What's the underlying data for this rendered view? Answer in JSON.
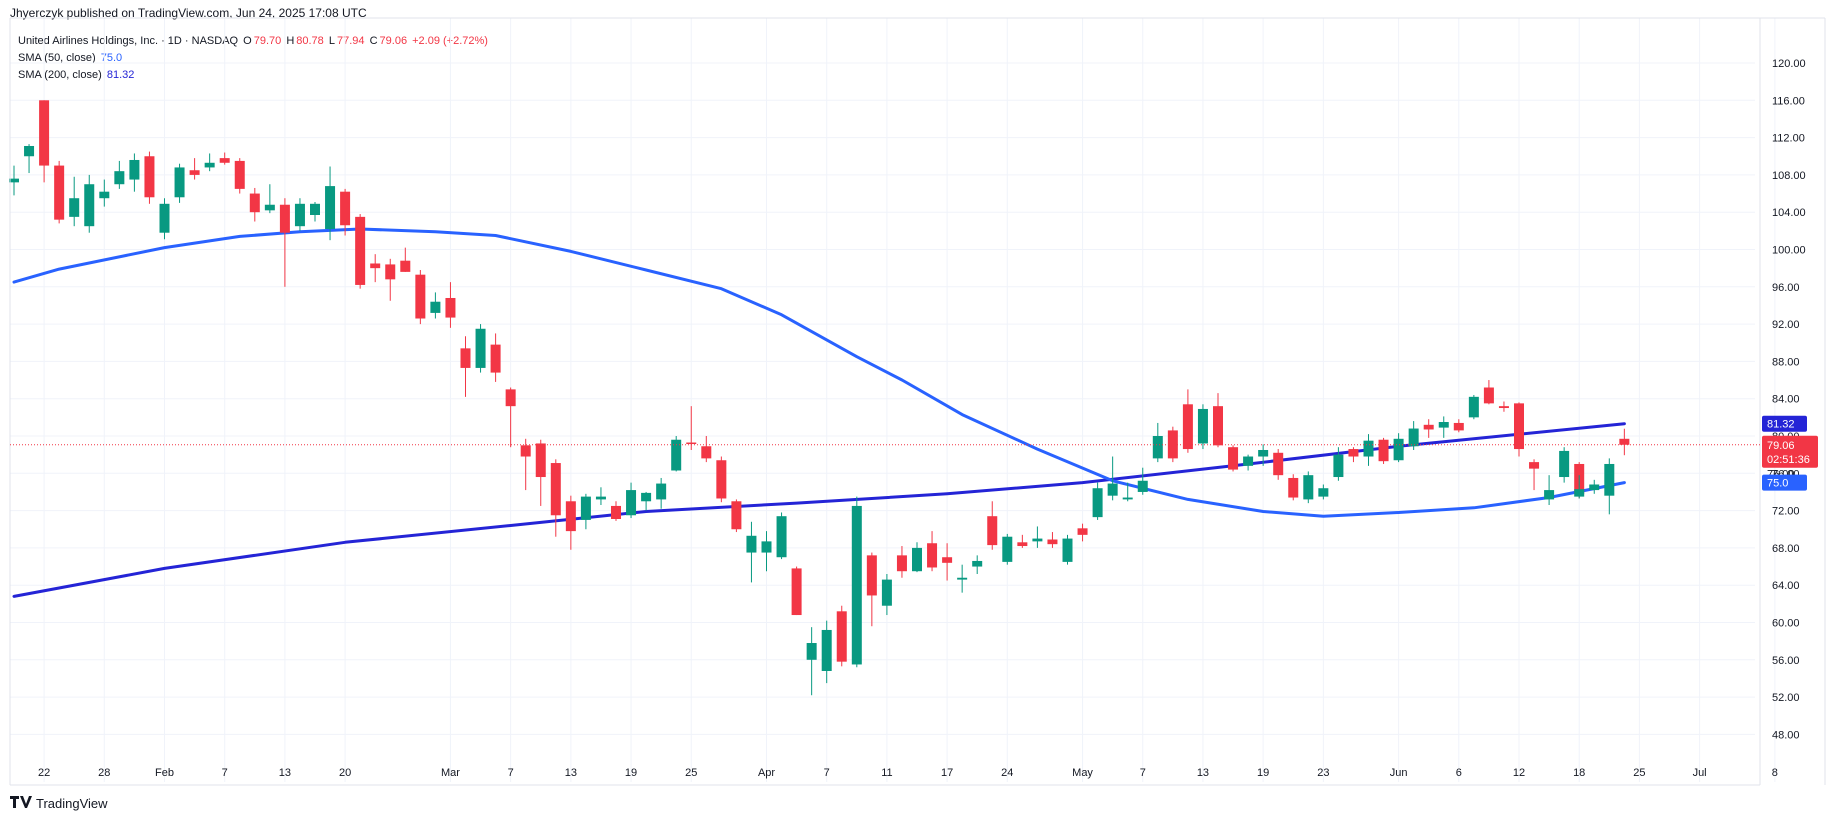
{
  "publisher": "Jhyerczyk published on TradingView.com, Jun 24, 2025 17:08 UTC",
  "header": {
    "symbol": "United Airlines Holdings, Inc. · 1D · NASDAQ",
    "o_label": "O",
    "o_value": "79.70",
    "h_label": "H",
    "h_value": "80.78",
    "l_label": "L",
    "l_value": "77.94",
    "c_label": "C",
    "c_value": "79.06",
    "change": "+2.09 (+2.72%)",
    "sma50_label": "SMA (50, close)",
    "sma50_value": "75.0",
    "sma200_label": "SMA (200, close)",
    "sma200_value": "81.32"
  },
  "footer": {
    "brand": "TradingView",
    "logo_icon": "tradingview-logo-icon"
  },
  "colors": {
    "up": "#089981",
    "down": "#f23645",
    "sma50": "#2962ff",
    "sma200": "#2424d6",
    "grid": "#f0f3fa",
    "last_price_line": "#f23645"
  },
  "price_tags": {
    "sma200": "81.32",
    "last": "79.06",
    "countdown": "02:51:36",
    "sma50": "75.0",
    "hidden": "76.00"
  },
  "chart_data": {
    "type": "candlestick",
    "title": "United Airlines Holdings, Inc. · 1D · NASDAQ",
    "ylim": [
      46,
      124
    ],
    "y_ticks": [
      "120.00",
      "116.00",
      "112.00",
      "108.00",
      "104.00",
      "100.00",
      "96.00",
      "92.00",
      "88.00",
      "84.00",
      "80.00",
      "76.00",
      "72.00",
      "68.00",
      "64.00",
      "60.00",
      "56.00",
      "52.00",
      "48.00"
    ],
    "x_ticks": [
      {
        "label": "22",
        "date": "2025-01-22"
      },
      {
        "label": "28",
        "date": "2025-01-28"
      },
      {
        "label": "Feb",
        "date": "2025-02-03"
      },
      {
        "label": "7",
        "date": "2025-02-07"
      },
      {
        "label": "13",
        "date": "2025-02-13"
      },
      {
        "label": "20",
        "date": "2025-02-20"
      },
      {
        "label": "Mar",
        "date": "2025-03-03"
      },
      {
        "label": "7",
        "date": "2025-03-07"
      },
      {
        "label": "13",
        "date": "2025-03-13"
      },
      {
        "label": "19",
        "date": "2025-03-19"
      },
      {
        "label": "25",
        "date": "2025-03-25"
      },
      {
        "label": "Apr",
        "date": "2025-04-01"
      },
      {
        "label": "7",
        "date": "2025-04-07"
      },
      {
        "label": "11",
        "date": "2025-04-11"
      },
      {
        "label": "17",
        "date": "2025-04-17"
      },
      {
        "label": "24",
        "date": "2025-04-24"
      },
      {
        "label": "May",
        "date": "2025-05-01"
      },
      {
        "label": "7",
        "date": "2025-05-07"
      },
      {
        "label": "13",
        "date": "2025-05-13"
      },
      {
        "label": "19",
        "date": "2025-05-19"
      },
      {
        "label": "23",
        "date": "2025-05-23"
      },
      {
        "label": "Jun",
        "date": "2025-06-02"
      },
      {
        "label": "6",
        "date": "2025-06-06"
      },
      {
        "label": "12",
        "date": "2025-06-12"
      },
      {
        "label": "18",
        "date": "2025-06-18"
      },
      {
        "label": "25",
        "date": "2025-06-25"
      },
      {
        "label": "Jul",
        "date": "2025-07-01"
      },
      {
        "label": "8",
        "date": "2025-07-08"
      }
    ],
    "candles": [
      {
        "date": "2025-01-17",
        "o": 107.2,
        "h": 109.0,
        "l": 105.8,
        "c": 107.6
      },
      {
        "date": "2025-01-21",
        "o": 110.0,
        "h": 111.3,
        "l": 108.2,
        "c": 111.1
      },
      {
        "date": "2025-01-22",
        "o": 116.0,
        "h": 116.0,
        "l": 107.2,
        "c": 109.0
      },
      {
        "date": "2025-01-23",
        "o": 109.0,
        "h": 109.5,
        "l": 102.8,
        "c": 103.2
      },
      {
        "date": "2025-01-24",
        "o": 103.5,
        "h": 107.8,
        "l": 102.5,
        "c": 105.5
      },
      {
        "date": "2025-01-27",
        "o": 102.5,
        "h": 108.0,
        "l": 101.8,
        "c": 107.0
      },
      {
        "date": "2025-01-28",
        "o": 105.5,
        "h": 107.5,
        "l": 104.6,
        "c": 106.2
      },
      {
        "date": "2025-01-29",
        "o": 107.0,
        "h": 109.5,
        "l": 106.5,
        "c": 108.4
      },
      {
        "date": "2025-01-30",
        "o": 107.5,
        "h": 110.3,
        "l": 106.2,
        "c": 109.6
      },
      {
        "date": "2025-01-31",
        "o": 110.0,
        "h": 110.5,
        "l": 104.9,
        "c": 105.6
      },
      {
        "date": "2025-02-03",
        "o": 101.8,
        "h": 105.5,
        "l": 101.1,
        "c": 104.9
      },
      {
        "date": "2025-02-04",
        "o": 105.6,
        "h": 109.2,
        "l": 105.0,
        "c": 108.8
      },
      {
        "date": "2025-02-05",
        "o": 108.5,
        "h": 109.8,
        "l": 107.5,
        "c": 108.0
      },
      {
        "date": "2025-02-06",
        "o": 108.8,
        "h": 110.3,
        "l": 108.4,
        "c": 109.3
      },
      {
        "date": "2025-02-07",
        "o": 109.8,
        "h": 110.4,
        "l": 109.1,
        "c": 109.3
      },
      {
        "date": "2025-02-10",
        "o": 109.5,
        "h": 109.8,
        "l": 106.0,
        "c": 106.5
      },
      {
        "date": "2025-02-11",
        "o": 106.0,
        "h": 106.6,
        "l": 103.0,
        "c": 104.0
      },
      {
        "date": "2025-02-12",
        "o": 104.2,
        "h": 107.0,
        "l": 103.9,
        "c": 104.8
      },
      {
        "date": "2025-02-13",
        "o": 104.8,
        "h": 105.5,
        "l": 96.0,
        "c": 101.8
      },
      {
        "date": "2025-02-14",
        "o": 102.5,
        "h": 105.5,
        "l": 102.0,
        "c": 104.9
      },
      {
        "date": "2025-02-18",
        "o": 103.7,
        "h": 105.1,
        "l": 103.0,
        "c": 104.9
      },
      {
        "date": "2025-02-19",
        "o": 102.2,
        "h": 108.9,
        "l": 101.0,
        "c": 106.8
      },
      {
        "date": "2025-02-20",
        "o": 106.2,
        "h": 106.5,
        "l": 101.5,
        "c": 102.6
      },
      {
        "date": "2025-02-21",
        "o": 103.5,
        "h": 103.8,
        "l": 95.8,
        "c": 96.2
      },
      {
        "date": "2025-02-24",
        "o": 98.5,
        "h": 99.5,
        "l": 96.5,
        "c": 98.0
      },
      {
        "date": "2025-02-25",
        "o": 98.4,
        "h": 99.0,
        "l": 94.5,
        "c": 96.8
      },
      {
        "date": "2025-02-26",
        "o": 98.8,
        "h": 100.2,
        "l": 97.6,
        "c": 97.6
      },
      {
        "date": "2025-02-27",
        "o": 97.3,
        "h": 97.8,
        "l": 92.0,
        "c": 92.6
      },
      {
        "date": "2025-02-28",
        "o": 93.2,
        "h": 95.4,
        "l": 92.6,
        "c": 94.4
      },
      {
        "date": "2025-03-03",
        "o": 94.8,
        "h": 96.5,
        "l": 91.6,
        "c": 92.7
      },
      {
        "date": "2025-03-04",
        "o": 89.4,
        "h": 90.7,
        "l": 84.2,
        "c": 87.3
      },
      {
        "date": "2025-03-05",
        "o": 87.3,
        "h": 92.0,
        "l": 86.8,
        "c": 91.5
      },
      {
        "date": "2025-03-06",
        "o": 89.8,
        "h": 91.0,
        "l": 85.8,
        "c": 86.8
      },
      {
        "date": "2025-03-07",
        "o": 85.0,
        "h": 85.2,
        "l": 78.8,
        "c": 83.2
      },
      {
        "date": "2025-03-10",
        "o": 79.0,
        "h": 79.7,
        "l": 74.2,
        "c": 77.8
      },
      {
        "date": "2025-03-11",
        "o": 79.2,
        "h": 79.6,
        "l": 72.5,
        "c": 75.6
      },
      {
        "date": "2025-03-12",
        "o": 77.1,
        "h": 77.5,
        "l": 69.2,
        "c": 71.5
      },
      {
        "date": "2025-03-13",
        "o": 73.0,
        "h": 73.6,
        "l": 67.8,
        "c": 69.8
      },
      {
        "date": "2025-03-14",
        "o": 71.0,
        "h": 73.8,
        "l": 70.0,
        "c": 73.5
      },
      {
        "date": "2025-03-17",
        "o": 73.2,
        "h": 74.5,
        "l": 72.6,
        "c": 73.5
      },
      {
        "date": "2025-03-18",
        "o": 72.5,
        "h": 73.0,
        "l": 70.9,
        "c": 71.1
      },
      {
        "date": "2025-03-19",
        "o": 71.5,
        "h": 75.0,
        "l": 71.2,
        "c": 74.2
      },
      {
        "date": "2025-03-20",
        "o": 73.0,
        "h": 74.0,
        "l": 72.0,
        "c": 73.9
      },
      {
        "date": "2025-03-21",
        "o": 73.2,
        "h": 75.5,
        "l": 72.2,
        "c": 74.9
      },
      {
        "date": "2025-03-24",
        "o": 76.3,
        "h": 80.0,
        "l": 76.2,
        "c": 79.6
      },
      {
        "date": "2025-03-25",
        "o": 79.3,
        "h": 83.2,
        "l": 78.5,
        "c": 79.2
      },
      {
        "date": "2025-03-26",
        "o": 78.9,
        "h": 80.0,
        "l": 77.2,
        "c": 77.6
      },
      {
        "date": "2025-03-27",
        "o": 77.4,
        "h": 77.8,
        "l": 72.9,
        "c": 73.3
      },
      {
        "date": "2025-03-28",
        "o": 73.0,
        "h": 73.2,
        "l": 69.7,
        "c": 70.0
      },
      {
        "date": "2025-03-31",
        "o": 67.5,
        "h": 70.8,
        "l": 64.3,
        "c": 69.3
      },
      {
        "date": "2025-04-01",
        "o": 67.5,
        "h": 69.8,
        "l": 65.5,
        "c": 68.7
      },
      {
        "date": "2025-04-02",
        "o": 67.0,
        "h": 71.8,
        "l": 66.8,
        "c": 71.4
      },
      {
        "date": "2025-04-03",
        "o": 65.8,
        "h": 66.0,
        "l": 60.8,
        "c": 60.8
      },
      {
        "date": "2025-04-04",
        "o": 56.0,
        "h": 59.5,
        "l": 52.2,
        "c": 57.8
      },
      {
        "date": "2025-04-07",
        "o": 54.8,
        "h": 60.2,
        "l": 53.5,
        "c": 59.2
      },
      {
        "date": "2025-04-08",
        "o": 61.2,
        "h": 61.8,
        "l": 55.3,
        "c": 55.8
      },
      {
        "date": "2025-04-09",
        "o": 55.5,
        "h": 73.5,
        "l": 55.2,
        "c": 72.5
      },
      {
        "date": "2025-04-10",
        "o": 67.2,
        "h": 67.5,
        "l": 59.6,
        "c": 62.9
      },
      {
        "date": "2025-04-11",
        "o": 61.8,
        "h": 65.2,
        "l": 60.8,
        "c": 64.6
      },
      {
        "date": "2025-04-14",
        "o": 67.2,
        "h": 68.2,
        "l": 64.8,
        "c": 65.5
      },
      {
        "date": "2025-04-15",
        "o": 65.5,
        "h": 68.6,
        "l": 65.4,
        "c": 68.0
      },
      {
        "date": "2025-04-16",
        "o": 68.5,
        "h": 69.8,
        "l": 65.5,
        "c": 65.9
      },
      {
        "date": "2025-04-17",
        "o": 67.0,
        "h": 68.5,
        "l": 64.5,
        "c": 66.4
      },
      {
        "date": "2025-04-21",
        "o": 64.6,
        "h": 66.2,
        "l": 63.2,
        "c": 64.8
      },
      {
        "date": "2025-04-22",
        "o": 66.0,
        "h": 67.2,
        "l": 65.2,
        "c": 66.6
      },
      {
        "date": "2025-04-23",
        "o": 71.4,
        "h": 73.0,
        "l": 67.8,
        "c": 68.3
      },
      {
        "date": "2025-04-24",
        "o": 66.5,
        "h": 69.5,
        "l": 66.2,
        "c": 69.2
      },
      {
        "date": "2025-04-25",
        "o": 68.6,
        "h": 69.4,
        "l": 68.0,
        "c": 68.2
      },
      {
        "date": "2025-04-28",
        "o": 68.7,
        "h": 70.3,
        "l": 68.0,
        "c": 69.0
      },
      {
        "date": "2025-04-29",
        "o": 68.9,
        "h": 69.7,
        "l": 68.0,
        "c": 68.4
      },
      {
        "date": "2025-04-30",
        "o": 66.5,
        "h": 69.4,
        "l": 66.2,
        "c": 69.0
      },
      {
        "date": "2025-05-01",
        "o": 70.1,
        "h": 70.6,
        "l": 68.7,
        "c": 69.4
      },
      {
        "date": "2025-05-02",
        "o": 71.3,
        "h": 75.0,
        "l": 71.0,
        "c": 74.4
      },
      {
        "date": "2025-05-05",
        "o": 73.6,
        "h": 77.8,
        "l": 73.1,
        "c": 74.9
      },
      {
        "date": "2025-05-06",
        "o": 73.2,
        "h": 75.0,
        "l": 73.0,
        "c": 73.4
      },
      {
        "date": "2025-05-07",
        "o": 74.0,
        "h": 76.6,
        "l": 73.7,
        "c": 75.2
      },
      {
        "date": "2025-05-08",
        "o": 77.6,
        "h": 81.4,
        "l": 77.2,
        "c": 80.0
      },
      {
        "date": "2025-05-09",
        "o": 80.6,
        "h": 81.0,
        "l": 77.2,
        "c": 77.6
      },
      {
        "date": "2025-05-12",
        "o": 83.4,
        "h": 85.0,
        "l": 78.2,
        "c": 78.6
      },
      {
        "date": "2025-05-13",
        "o": 79.2,
        "h": 83.4,
        "l": 78.6,
        "c": 82.9
      },
      {
        "date": "2025-05-14",
        "o": 83.2,
        "h": 84.6,
        "l": 78.8,
        "c": 79.0
      },
      {
        "date": "2025-05-15",
        "o": 78.8,
        "h": 79.0,
        "l": 76.2,
        "c": 76.4
      },
      {
        "date": "2025-05-16",
        "o": 76.8,
        "h": 78.0,
        "l": 76.3,
        "c": 77.8
      },
      {
        "date": "2025-05-19",
        "o": 77.8,
        "h": 79.1,
        "l": 76.8,
        "c": 78.5
      },
      {
        "date": "2025-05-20",
        "o": 78.2,
        "h": 78.6,
        "l": 75.3,
        "c": 75.8
      },
      {
        "date": "2025-05-21",
        "o": 75.5,
        "h": 75.9,
        "l": 73.1,
        "c": 73.4
      },
      {
        "date": "2025-05-22",
        "o": 73.2,
        "h": 76.2,
        "l": 72.8,
        "c": 75.8
      },
      {
        "date": "2025-05-23",
        "o": 73.5,
        "h": 74.8,
        "l": 73.2,
        "c": 74.4
      },
      {
        "date": "2025-05-27",
        "o": 75.6,
        "h": 78.8,
        "l": 75.2,
        "c": 78.0
      },
      {
        "date": "2025-05-28",
        "o": 78.6,
        "h": 78.8,
        "l": 77.2,
        "c": 77.8
      },
      {
        "date": "2025-05-29",
        "o": 77.8,
        "h": 80.2,
        "l": 76.8,
        "c": 79.5
      },
      {
        "date": "2025-05-30",
        "o": 79.6,
        "h": 79.8,
        "l": 77.0,
        "c": 77.3
      },
      {
        "date": "2025-06-02",
        "o": 77.4,
        "h": 80.3,
        "l": 77.2,
        "c": 79.7
      },
      {
        "date": "2025-06-03",
        "o": 78.9,
        "h": 81.6,
        "l": 78.5,
        "c": 80.8
      },
      {
        "date": "2025-06-04",
        "o": 81.2,
        "h": 81.8,
        "l": 79.8,
        "c": 80.7
      },
      {
        "date": "2025-06-05",
        "o": 80.9,
        "h": 82.1,
        "l": 79.8,
        "c": 81.5
      },
      {
        "date": "2025-06-06",
        "o": 81.4,
        "h": 81.8,
        "l": 80.4,
        "c": 80.6
      },
      {
        "date": "2025-06-09",
        "o": 82.0,
        "h": 84.4,
        "l": 81.8,
        "c": 84.2
      },
      {
        "date": "2025-06-10",
        "o": 85.2,
        "h": 86.0,
        "l": 83.4,
        "c": 83.5
      },
      {
        "date": "2025-06-11",
        "o": 83.2,
        "h": 83.7,
        "l": 82.6,
        "c": 83.0
      },
      {
        "date": "2025-06-12",
        "o": 83.5,
        "h": 83.6,
        "l": 77.8,
        "c": 78.6
      },
      {
        "date": "2025-06-13",
        "o": 77.2,
        "h": 77.5,
        "l": 74.2,
        "c": 76.5
      },
      {
        "date": "2025-06-16",
        "o": 73.2,
        "h": 75.8,
        "l": 72.6,
        "c": 74.2
      },
      {
        "date": "2025-06-17",
        "o": 75.6,
        "h": 78.8,
        "l": 75.0,
        "c": 78.4
      },
      {
        "date": "2025-06-18",
        "o": 77.0,
        "h": 77.2,
        "l": 73.3,
        "c": 73.8
      },
      {
        "date": "2025-06-19",
        "o": 73.5,
        "h": 75.8,
        "l": 73.3,
        "c": 74.3
      },
      {
        "date": "2025-06-20",
        "o": 74.2,
        "h": 75.3,
        "l": 73.8,
        "c": 74.8
      },
      {
        "date": "2025-06-23",
        "o": 73.6,
        "h": 77.6,
        "l": 71.6,
        "c": 77.0
      },
      {
        "date": "2025-06-24",
        "o": 79.7,
        "h": 80.78,
        "l": 77.94,
        "c": 79.06
      }
    ],
    "sma50": [
      {
        "date": "2025-01-17",
        "v": 96.5
      },
      {
        "date": "2025-01-23",
        "v": 97.9
      },
      {
        "date": "2025-02-03",
        "v": 100.2
      },
      {
        "date": "2025-02-10",
        "v": 101.4
      },
      {
        "date": "2025-02-14",
        "v": 101.9
      },
      {
        "date": "2025-02-21",
        "v": 102.2
      },
      {
        "date": "2025-02-28",
        "v": 101.9
      },
      {
        "date": "2025-03-06",
        "v": 101.5
      },
      {
        "date": "2025-03-13",
        "v": 99.8
      },
      {
        "date": "2025-03-20",
        "v": 97.8
      },
      {
        "date": "2025-03-27",
        "v": 95.8
      },
      {
        "date": "2025-04-02",
        "v": 93.0
      },
      {
        "date": "2025-04-09",
        "v": 88.5
      },
      {
        "date": "2025-04-14",
        "v": 86.0
      },
      {
        "date": "2025-04-21",
        "v": 82.3
      },
      {
        "date": "2025-04-28",
        "v": 78.6
      },
      {
        "date": "2025-05-05",
        "v": 75.2
      },
      {
        "date": "2025-05-12",
        "v": 73.2
      },
      {
        "date": "2025-05-19",
        "v": 71.9
      },
      {
        "date": "2025-05-26",
        "v": 71.4
      },
      {
        "date": "2025-06-02",
        "v": 71.8
      },
      {
        "date": "2025-06-09",
        "v": 72.3
      },
      {
        "date": "2025-06-16",
        "v": 73.4
      },
      {
        "date": "2025-06-24",
        "v": 75.0
      }
    ],
    "sma200": [
      {
        "date": "2025-01-17",
        "v": 62.8
      },
      {
        "date": "2025-02-03",
        "v": 65.8
      },
      {
        "date": "2025-02-20",
        "v": 68.6
      },
      {
        "date": "2025-03-07",
        "v": 70.4
      },
      {
        "date": "2025-03-20",
        "v": 71.9
      },
      {
        "date": "2025-04-03",
        "v": 72.8
      },
      {
        "date": "2025-04-17",
        "v": 73.8
      },
      {
        "date": "2025-05-01",
        "v": 75.0
      },
      {
        "date": "2025-05-15",
        "v": 76.8
      },
      {
        "date": "2025-06-02",
        "v": 78.9
      },
      {
        "date": "2025-06-24",
        "v": 81.32
      }
    ]
  }
}
